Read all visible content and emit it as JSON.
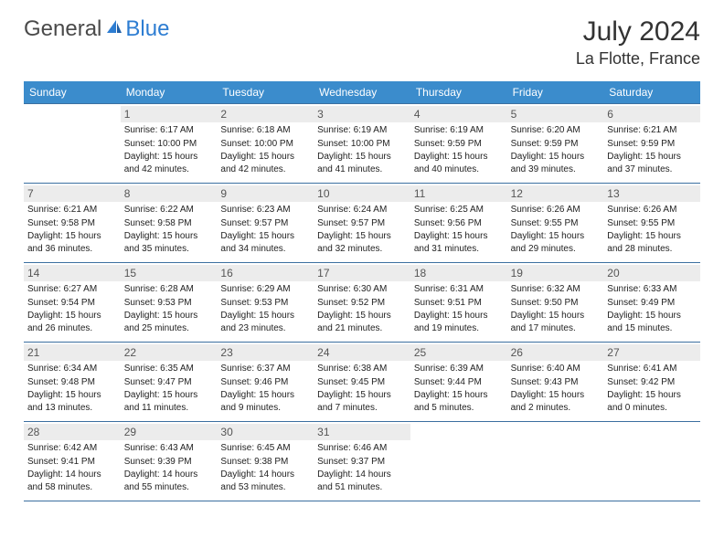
{
  "brand": {
    "part1": "General",
    "part2": "Blue"
  },
  "title": "July 2024",
  "location": "La Flotte, France",
  "colors": {
    "header_bg": "#3b8ccc",
    "rule": "#3b6fa0",
    "daynum_bg": "#ececec",
    "text": "#222222",
    "logo_grey": "#4a4a4a",
    "logo_blue": "#2d7dd2"
  },
  "dayNames": [
    "Sunday",
    "Monday",
    "Tuesday",
    "Wednesday",
    "Thursday",
    "Friday",
    "Saturday"
  ],
  "weeks": [
    [
      null,
      {
        "n": "1",
        "sr": "6:17 AM",
        "ss": "10:00 PM",
        "dl": "Daylight: 15 hours and 42 minutes."
      },
      {
        "n": "2",
        "sr": "6:18 AM",
        "ss": "10:00 PM",
        "dl": "Daylight: 15 hours and 42 minutes."
      },
      {
        "n": "3",
        "sr": "6:19 AM",
        "ss": "10:00 PM",
        "dl": "Daylight: 15 hours and 41 minutes."
      },
      {
        "n": "4",
        "sr": "6:19 AM",
        "ss": "9:59 PM",
        "dl": "Daylight: 15 hours and 40 minutes."
      },
      {
        "n": "5",
        "sr": "6:20 AM",
        "ss": "9:59 PM",
        "dl": "Daylight: 15 hours and 39 minutes."
      },
      {
        "n": "6",
        "sr": "6:21 AM",
        "ss": "9:59 PM",
        "dl": "Daylight: 15 hours and 37 minutes."
      }
    ],
    [
      {
        "n": "7",
        "sr": "6:21 AM",
        "ss": "9:58 PM",
        "dl": "Daylight: 15 hours and 36 minutes."
      },
      {
        "n": "8",
        "sr": "6:22 AM",
        "ss": "9:58 PM",
        "dl": "Daylight: 15 hours and 35 minutes."
      },
      {
        "n": "9",
        "sr": "6:23 AM",
        "ss": "9:57 PM",
        "dl": "Daylight: 15 hours and 34 minutes."
      },
      {
        "n": "10",
        "sr": "6:24 AM",
        "ss": "9:57 PM",
        "dl": "Daylight: 15 hours and 32 minutes."
      },
      {
        "n": "11",
        "sr": "6:25 AM",
        "ss": "9:56 PM",
        "dl": "Daylight: 15 hours and 31 minutes."
      },
      {
        "n": "12",
        "sr": "6:26 AM",
        "ss": "9:55 PM",
        "dl": "Daylight: 15 hours and 29 minutes."
      },
      {
        "n": "13",
        "sr": "6:26 AM",
        "ss": "9:55 PM",
        "dl": "Daylight: 15 hours and 28 minutes."
      }
    ],
    [
      {
        "n": "14",
        "sr": "6:27 AM",
        "ss": "9:54 PM",
        "dl": "Daylight: 15 hours and 26 minutes."
      },
      {
        "n": "15",
        "sr": "6:28 AM",
        "ss": "9:53 PM",
        "dl": "Daylight: 15 hours and 25 minutes."
      },
      {
        "n": "16",
        "sr": "6:29 AM",
        "ss": "9:53 PM",
        "dl": "Daylight: 15 hours and 23 minutes."
      },
      {
        "n": "17",
        "sr": "6:30 AM",
        "ss": "9:52 PM",
        "dl": "Daylight: 15 hours and 21 minutes."
      },
      {
        "n": "18",
        "sr": "6:31 AM",
        "ss": "9:51 PM",
        "dl": "Daylight: 15 hours and 19 minutes."
      },
      {
        "n": "19",
        "sr": "6:32 AM",
        "ss": "9:50 PM",
        "dl": "Daylight: 15 hours and 17 minutes."
      },
      {
        "n": "20",
        "sr": "6:33 AM",
        "ss": "9:49 PM",
        "dl": "Daylight: 15 hours and 15 minutes."
      }
    ],
    [
      {
        "n": "21",
        "sr": "6:34 AM",
        "ss": "9:48 PM",
        "dl": "Daylight: 15 hours and 13 minutes."
      },
      {
        "n": "22",
        "sr": "6:35 AM",
        "ss": "9:47 PM",
        "dl": "Daylight: 15 hours and 11 minutes."
      },
      {
        "n": "23",
        "sr": "6:37 AM",
        "ss": "9:46 PM",
        "dl": "Daylight: 15 hours and 9 minutes."
      },
      {
        "n": "24",
        "sr": "6:38 AM",
        "ss": "9:45 PM",
        "dl": "Daylight: 15 hours and 7 minutes."
      },
      {
        "n": "25",
        "sr": "6:39 AM",
        "ss": "9:44 PM",
        "dl": "Daylight: 15 hours and 5 minutes."
      },
      {
        "n": "26",
        "sr": "6:40 AM",
        "ss": "9:43 PM",
        "dl": "Daylight: 15 hours and 2 minutes."
      },
      {
        "n": "27",
        "sr": "6:41 AM",
        "ss": "9:42 PM",
        "dl": "Daylight: 15 hours and 0 minutes."
      }
    ],
    [
      {
        "n": "28",
        "sr": "6:42 AM",
        "ss": "9:41 PM",
        "dl": "Daylight: 14 hours and 58 minutes."
      },
      {
        "n": "29",
        "sr": "6:43 AM",
        "ss": "9:39 PM",
        "dl": "Daylight: 14 hours and 55 minutes."
      },
      {
        "n": "30",
        "sr": "6:45 AM",
        "ss": "9:38 PM",
        "dl": "Daylight: 14 hours and 53 minutes."
      },
      {
        "n": "31",
        "sr": "6:46 AM",
        "ss": "9:37 PM",
        "dl": "Daylight: 14 hours and 51 minutes."
      },
      null,
      null,
      null
    ]
  ],
  "labels": {
    "sunrise": "Sunrise:",
    "sunset": "Sunset:"
  }
}
